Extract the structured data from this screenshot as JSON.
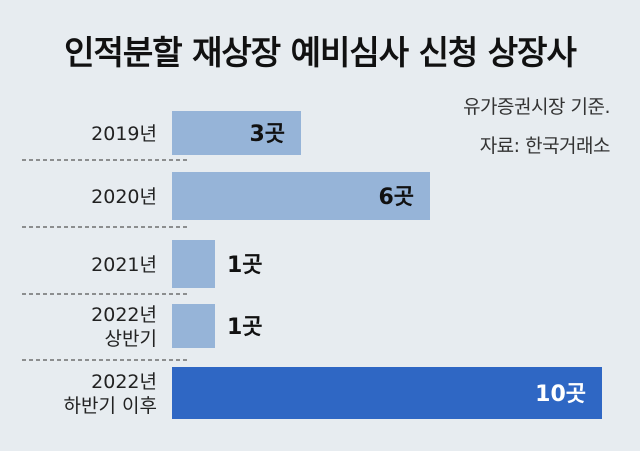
{
  "title": "인적분할 재상장 예비심사 신청 상장사",
  "notes": [
    "유가증권시장 기준.",
    "자료: 한국거래소"
  ],
  "colors": {
    "bar": "#96b4d8",
    "highlight": "#2f67c4",
    "background": "#e7ecf0"
  },
  "chart_data": {
    "type": "bar",
    "orientation": "horizontal",
    "title": "인적분할 재상장 예비심사 신청 상장사",
    "categories": [
      [
        "2019년"
      ],
      [
        "2020년"
      ],
      [
        "2021년"
      ],
      [
        "2022년",
        "상반기"
      ],
      [
        "2022년",
        "하반기 이후"
      ]
    ],
    "values": [
      3,
      6,
      1,
      1,
      10
    ],
    "value_labels": [
      "3곳",
      "6곳",
      "1곳",
      "1곳",
      "10곳"
    ],
    "highlight_index": 4,
    "xlim": [
      0,
      10
    ],
    "grid": false
  }
}
